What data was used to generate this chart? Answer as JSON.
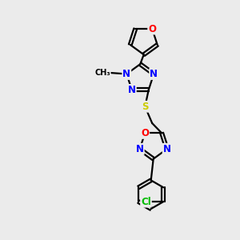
{
  "bg_color": "#ebebeb",
  "bond_color": "#000000",
  "bond_width": 1.6,
  "atom_colors": {
    "N": "#0000FF",
    "O": "#FF0000",
    "S": "#CCCC00",
    "Cl": "#00BB00",
    "C": "#000000"
  },
  "font_size_atom": 8.5,
  "figsize": [
    3.0,
    3.0
  ],
  "dpi": 100
}
